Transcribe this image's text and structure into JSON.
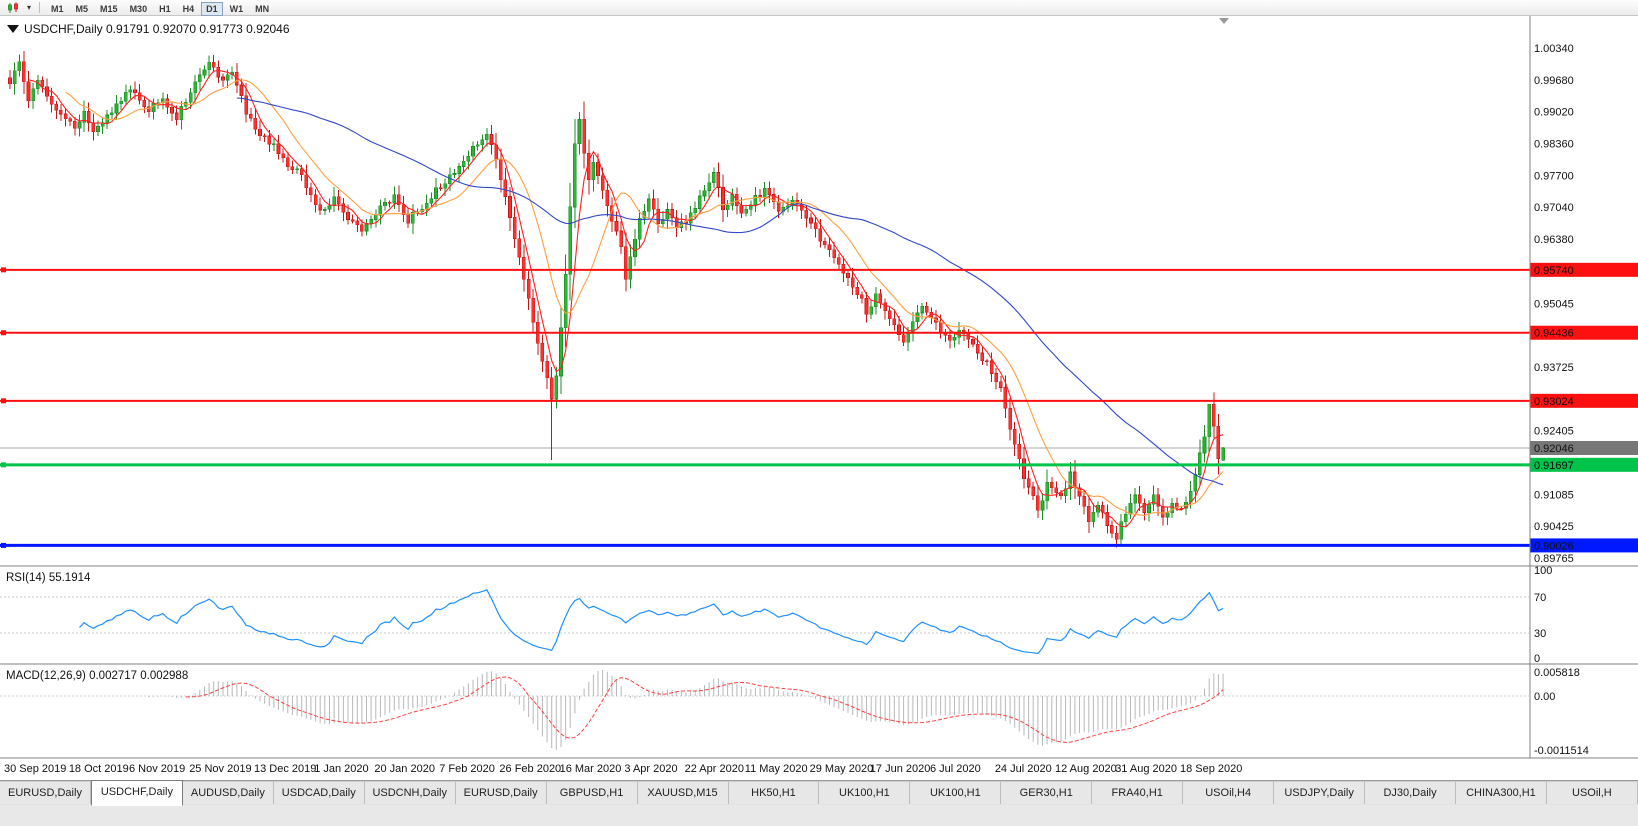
{
  "toolbar": {
    "chart_icon": "candlestick-chart-icon",
    "dropdown_icon": "chevron-down-icon",
    "timeframes": [
      {
        "label": "M1",
        "active": false
      },
      {
        "label": "M5",
        "active": false
      },
      {
        "label": "M15",
        "active": false
      },
      {
        "label": "M30",
        "active": false
      },
      {
        "label": "H1",
        "active": false
      },
      {
        "label": "H4",
        "active": false
      },
      {
        "label": "D1",
        "active": true
      },
      {
        "label": "W1",
        "active": false
      },
      {
        "label": "MN",
        "active": false
      }
    ]
  },
  "chart": {
    "title_symbol": "USDCHF,Daily",
    "ohlc": {
      "open": "0.91791",
      "high": "0.92070",
      "low": "0.91773",
      "close": "0.92046"
    }
  },
  "chart_data": {
    "type": "candlestick",
    "symbol": "USDCHF",
    "timeframe": "Daily",
    "num_bars": 263,
    "x_ticks": [
      {
        "i": 0,
        "label": "30 Sep 2019"
      },
      {
        "i": 14,
        "label": "18 Oct 2019"
      },
      {
        "i": 27,
        "label": "6 Nov 2019"
      },
      {
        "i": 40,
        "label": "25 Nov 2019"
      },
      {
        "i": 54,
        "label": "13 Dec 2019"
      },
      {
        "i": 67,
        "label": "1 Jan 2020"
      },
      {
        "i": 80,
        "label": "20 Jan 2020"
      },
      {
        "i": 94,
        "label": "7 Feb 2020"
      },
      {
        "i": 107,
        "label": "26 Feb 2020"
      },
      {
        "i": 120,
        "label": "16 Mar 2020"
      },
      {
        "i": 134,
        "label": "3 Apr 2020"
      },
      {
        "i": 147,
        "label": "22 Apr 2020"
      },
      {
        "i": 160,
        "label": "11 May 2020"
      },
      {
        "i": 174,
        "label": "29 May 2020"
      },
      {
        "i": 187,
        "label": "17 Jun 2020"
      },
      {
        "i": 200,
        "label": "6 Jul 2020"
      },
      {
        "i": 214,
        "label": "24 Jul 2020"
      },
      {
        "i": 227,
        "label": "12 Aug 2020"
      },
      {
        "i": 240,
        "label": "31 Aug 2020"
      },
      {
        "i": 254,
        "label": "18 Sep 2020"
      }
    ],
    "y_ticks": [
      {
        "p": 1.0034,
        "t": "1.00340"
      },
      {
        "p": 0.9968,
        "t": "0.99680"
      },
      {
        "p": 0.9902,
        "t": "0.99020"
      },
      {
        "p": 0.9836,
        "t": "0.98360"
      },
      {
        "p": 0.977,
        "t": "0.97700"
      },
      {
        "p": 0.9704,
        "t": "0.97040"
      },
      {
        "p": 0.9638,
        "t": "0.96380"
      },
      {
        "p": 0.95045,
        "t": "0.95045"
      },
      {
        "p": 0.93725,
        "t": "0.93725"
      },
      {
        "p": 0.92405,
        "t": "0.92405"
      },
      {
        "p": 0.91085,
        "t": "0.91085"
      },
      {
        "p": 0.90425,
        "t": "0.90425"
      },
      {
        "p": 0.89765,
        "t": "0.89765"
      }
    ],
    "hlines": [
      {
        "price": 0.9574,
        "label": "0.95740",
        "color": "#ff1010",
        "width": 2
      },
      {
        "price": 0.94436,
        "label": "0.94436",
        "color": "#ff1010",
        "width": 2
      },
      {
        "price": 0.93024,
        "label": "0.93024",
        "color": "#ff1010",
        "width": 2
      },
      {
        "price": 0.91697,
        "label": "0.91697",
        "color": "#00c44a",
        "width": 3
      },
      {
        "price": 0.90026,
        "label": "0.90026",
        "color": "#0018ff",
        "width": 3
      }
    ],
    "current_price": {
      "price": 0.92046,
      "label": "0.92046",
      "badge_color": "#777777",
      "line_color": "#aaaaaa"
    },
    "last_bar": {
      "open": 0.91791,
      "high": 0.9207,
      "low": 0.91773,
      "close": 0.92046
    },
    "key_bars": [
      {
        "i": 117,
        "low": 0.918
      },
      {
        "i": 123,
        "high": 0.9901
      },
      {
        "i": 239,
        "low": 0.8998
      },
      {
        "i": 259,
        "high": 0.9295
      }
    ],
    "price_anchors": [
      [
        0,
        0.996
      ],
      [
        2,
        1.0005
      ],
      [
        4,
        0.993
      ],
      [
        6,
        0.997
      ],
      [
        9,
        0.9915
      ],
      [
        12,
        0.989
      ],
      [
        14,
        0.9868
      ],
      [
        16,
        0.99
      ],
      [
        18,
        0.9858
      ],
      [
        21,
        0.9895
      ],
      [
        24,
        0.993
      ],
      [
        27,
        0.9945
      ],
      [
        30,
        0.9902
      ],
      [
        33,
        0.9932
      ],
      [
        36,
        0.9888
      ],
      [
        40,
        0.9965
      ],
      [
        43,
        1.0
      ],
      [
        46,
        0.996
      ],
      [
        48,
        0.9985
      ],
      [
        51,
        0.99
      ],
      [
        54,
        0.9852
      ],
      [
        57,
        0.983
      ],
      [
        60,
        0.9795
      ],
      [
        63,
        0.977
      ],
      [
        65,
        0.973
      ],
      [
        67,
        0.9692
      ],
      [
        70,
        0.9718
      ],
      [
        73,
        0.968
      ],
      [
        76,
        0.965
      ],
      [
        80,
        0.97
      ],
      [
        83,
        0.9728
      ],
      [
        86,
        0.9678
      ],
      [
        89,
        0.9702
      ],
      [
        92,
        0.974
      ],
      [
        94,
        0.9758
      ],
      [
        97,
        0.9782
      ],
      [
        100,
        0.9835
      ],
      [
        103,
        0.9852
      ],
      [
        105,
        0.98
      ],
      [
        107,
        0.9725
      ],
      [
        109,
        0.9635
      ],
      [
        111,
        0.956
      ],
      [
        113,
        0.947
      ],
      [
        115,
        0.9385
      ],
      [
        117,
        0.93
      ],
      [
        118,
        0.936
      ],
      [
        119,
        0.946
      ],
      [
        120,
        0.957
      ],
      [
        121,
        0.9705
      ],
      [
        122,
        0.984
      ],
      [
        123,
        0.988
      ],
      [
        124,
        0.9815
      ],
      [
        125,
        0.9755
      ],
      [
        126,
        0.9795
      ],
      [
        128,
        0.9745
      ],
      [
        130,
        0.9672
      ],
      [
        132,
        0.9625
      ],
      [
        133,
        0.9558
      ],
      [
        134,
        0.9608
      ],
      [
        136,
        0.9675
      ],
      [
        138,
        0.9718
      ],
      [
        140,
        0.9668
      ],
      [
        142,
        0.9698
      ],
      [
        144,
        0.9658
      ],
      [
        147,
        0.9688
      ],
      [
        150,
        0.9738
      ],
      [
        152,
        0.9775
      ],
      [
        154,
        0.97
      ],
      [
        156,
        0.9728
      ],
      [
        158,
        0.9698
      ],
      [
        160,
        0.9714
      ],
      [
        163,
        0.9738
      ],
      [
        166,
        0.9698
      ],
      [
        169,
        0.9718
      ],
      [
        172,
        0.9678
      ],
      [
        174,
        0.9652
      ],
      [
        177,
        0.9608
      ],
      [
        180,
        0.9568
      ],
      [
        183,
        0.9528
      ],
      [
        185,
        0.949
      ],
      [
        187,
        0.9518
      ],
      [
        190,
        0.9478
      ],
      [
        193,
        0.9428
      ],
      [
        195,
        0.9468
      ],
      [
        197,
        0.9498
      ],
      [
        200,
        0.9458
      ],
      [
        203,
        0.9432
      ],
      [
        206,
        0.9448
      ],
      [
        209,
        0.9398
      ],
      [
        211,
        0.9378
      ],
      [
        214,
        0.9328
      ],
      [
        216,
        0.9248
      ],
      [
        218,
        0.9178
      ],
      [
        220,
        0.9118
      ],
      [
        222,
        0.9078
      ],
      [
        224,
        0.9128
      ],
      [
        227,
        0.9108
      ],
      [
        229,
        0.9148
      ],
      [
        231,
        0.9098
      ],
      [
        233,
        0.9058
      ],
      [
        235,
        0.9088
      ],
      [
        237,
        0.9048
      ],
      [
        239,
        0.9022
      ],
      [
        241,
        0.9068
      ],
      [
        243,
        0.9102
      ],
      [
        245,
        0.9078
      ],
      [
        247,
        0.9108
      ],
      [
        249,
        0.9058
      ],
      [
        251,
        0.9082
      ],
      [
        254,
        0.9088
      ],
      [
        256,
        0.9148
      ],
      [
        258,
        0.9228
      ],
      [
        259,
        0.9292
      ],
      [
        260,
        0.9255
      ],
      [
        261,
        0.9179
      ],
      [
        262,
        0.92046
      ]
    ],
    "moving_averages": [
      {
        "period": 5,
        "color": "#ff2020"
      },
      {
        "period": 13,
        "color": "#ff9f40"
      },
      {
        "period": 50,
        "color": "#3048c8"
      }
    ],
    "indicators": {
      "rsi": {
        "label": "RSI(14)",
        "value": "55.1914",
        "period": 14,
        "levels": [
          100,
          70,
          30,
          0
        ],
        "axis_labels": [
          "100",
          "70",
          "30",
          "0"
        ],
        "line_color": "#1e90ff"
      },
      "macd": {
        "label": "MACD(12,26,9)",
        "value_main": "0.002717",
        "value_signal": "0.002988",
        "axis_labels": [
          "0.005818",
          "0.00",
          "-0.0011514"
        ],
        "hist_color": "#b8b8b8",
        "signal_color": "#ff4040"
      }
    },
    "colors": {
      "bull_fill": "#2db534",
      "bull_stroke": "#1d8c27",
      "bear_fill": "#ff3030",
      "bear_stroke": "#c41818",
      "background": "#ffffff",
      "axis_line": "#808080"
    }
  },
  "tabs": [
    {
      "label": "EURUSD,Daily",
      "active": false
    },
    {
      "label": "USDCHF,Daily",
      "active": true
    },
    {
      "label": "AUDUSD,Daily",
      "active": false
    },
    {
      "label": "USDCAD,Daily",
      "active": false
    },
    {
      "label": "USDCNH,Daily",
      "active": false
    },
    {
      "label": "EURUSD,Daily",
      "active": false
    },
    {
      "label": "GBPUSD,H1",
      "active": false
    },
    {
      "label": "XAUUSD,M15",
      "active": false
    },
    {
      "label": "HK50,H1",
      "active": false
    },
    {
      "label": "UK100,H1",
      "active": false
    },
    {
      "label": "UK100,H1",
      "active": false
    },
    {
      "label": "GER30,H1",
      "active": false
    },
    {
      "label": "FRA40,H1",
      "active": false
    },
    {
      "label": "USOil,H4",
      "active": false
    },
    {
      "label": "USDJPY,Daily",
      "active": false
    },
    {
      "label": "DJ30,Daily",
      "active": false
    },
    {
      "label": "CHINA300,H1",
      "active": false
    },
    {
      "label": "USOil,H",
      "active": false
    }
  ]
}
